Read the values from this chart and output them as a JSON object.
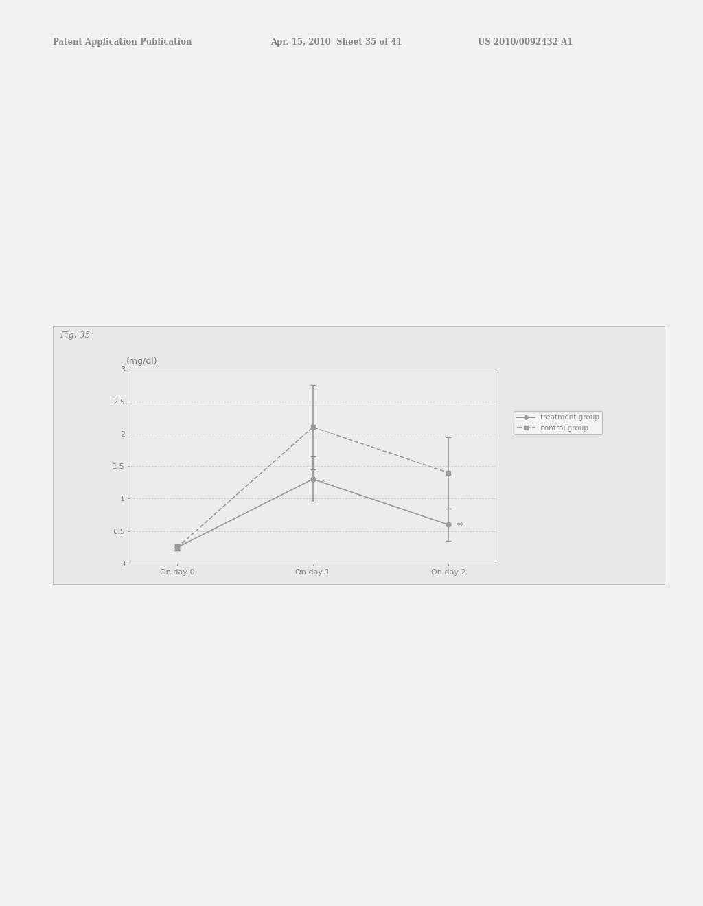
{
  "fig_label": "Fig. 35",
  "header_left": "Patent Application Publication",
  "header_mid": "Apr. 15, 2010  Sheet 35 of 41",
  "header_right": "US 2010/0092432 A1",
  "ylabel": "(mg/dl)",
  "ylim": [
    0,
    3
  ],
  "yticks": [
    0,
    0.5,
    1,
    1.5,
    2,
    2.5,
    3
  ],
  "x_labels": [
    "On day 0",
    "On day 1",
    "On day 2"
  ],
  "treatment_values": [
    0.25,
    1.3,
    0.6
  ],
  "treatment_errors": [
    0.05,
    0.35,
    0.25
  ],
  "control_values": [
    0.25,
    2.1,
    1.4
  ],
  "control_errors": [
    0.05,
    0.65,
    0.55
  ],
  "treatment_color": "#999999",
  "control_color": "#999999",
  "legend_treatment": "treatment group",
  "legend_control": "control group",
  "annotation_day1": "*",
  "annotation_day2": "**",
  "chart_bg": "#ececec",
  "panel_bg": "#e8e8e8",
  "outer_background": "#f0f0f0",
  "header_color": "#888888",
  "fig_label_color": "#888888",
  "grid_color": "#cccccc",
  "spine_color": "#aaaaaa",
  "tick_color": "#888888",
  "text_color": "#777777"
}
